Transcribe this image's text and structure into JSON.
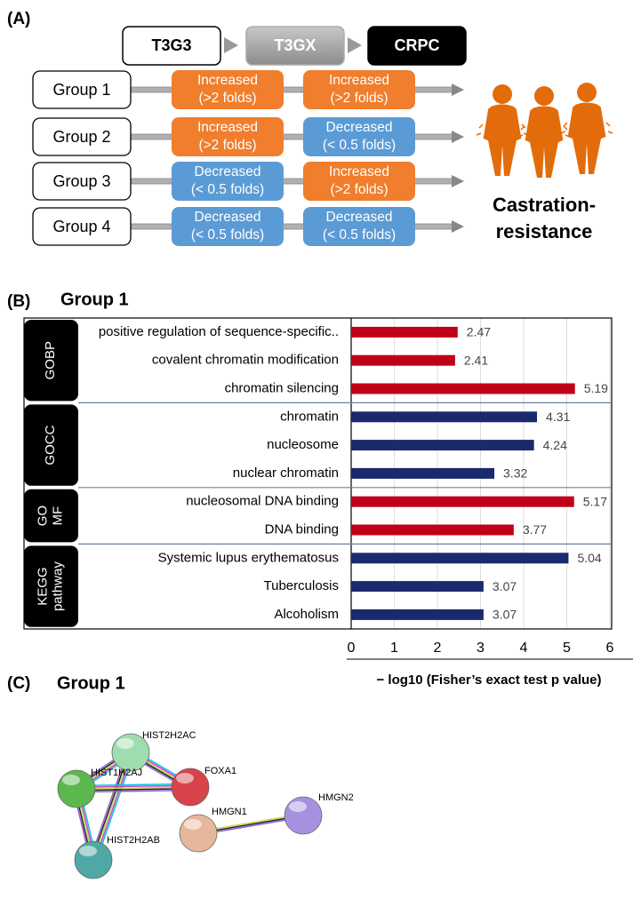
{
  "panel_a": {
    "label": "(A)",
    "stages": [
      "T3G3",
      "T3GX",
      "CRPC"
    ],
    "groups": [
      {
        "name": "Group 1",
        "steps": [
          [
            "Increased",
            "(>2 folds)"
          ],
          [
            "Increased",
            "(>2 folds)"
          ]
        ]
      },
      {
        "name": "Group 2",
        "steps": [
          [
            "Increased",
            "(>2 folds)"
          ],
          [
            "Decreased",
            "(< 0.5 folds)"
          ]
        ]
      },
      {
        "name": "Group 3",
        "steps": [
          [
            "Decreased",
            "(< 0.5 folds)"
          ],
          [
            "Increased",
            "(>2 folds)"
          ]
        ]
      },
      {
        "name": "Group 4",
        "steps": [
          [
            "Decreased",
            "(< 0.5 folds)"
          ],
          [
            "Decreased",
            "(< 0.5 folds)"
          ]
        ]
      }
    ],
    "outcome": [
      "Castration-",
      "resistance"
    ]
  },
  "chart_data": {
    "type": "bar",
    "panel_label": "(B)",
    "title": "Group 1",
    "x_label": "− log10 (Fisher’s exact test p value)",
    "xlim": [
      0,
      6
    ],
    "xticks": [
      0,
      1,
      2,
      3,
      4,
      5,
      6
    ],
    "grid": true,
    "groups": [
      {
        "label": [
          "GOBP"
        ],
        "color": "#c00018",
        "categories": [
          "positive regulation of sequence-specific..",
          "covalent chromatin modification",
          "chromatin silencing"
        ],
        "values": [
          2.47,
          2.41,
          5.19
        ]
      },
      {
        "label": [
          "GOCC"
        ],
        "color": "#1a2a6c",
        "categories": [
          "chromatin",
          "nucleosome",
          "nuclear chromatin"
        ],
        "values": [
          4.31,
          4.24,
          3.32
        ]
      },
      {
        "label": [
          "GO",
          "MF"
        ],
        "color": "#c00018",
        "categories": [
          "nucleosomal DNA binding",
          "DNA binding"
        ],
        "values": [
          5.17,
          3.77
        ]
      },
      {
        "label": [
          "KEGG",
          "pathway"
        ],
        "color": "#1a2a6c",
        "categories": [
          "Systemic lupus erythematosus",
          "Tuberculosis",
          "Alcoholism"
        ],
        "values": [
          5.04,
          3.07,
          3.07
        ]
      }
    ]
  },
  "panel_c": {
    "label": "(C)",
    "title": "Group 1",
    "nodes": [
      "HIST2H2AC",
      "HIST1H2AJ",
      "FOXA1",
      "HMGN2",
      "HMGN1",
      "HIST2H2AB"
    ]
  }
}
